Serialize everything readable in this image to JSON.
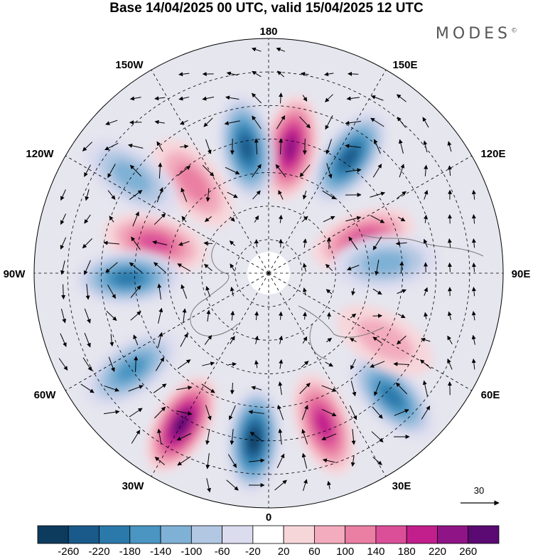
{
  "title": "Base 14/04/2025 00 UTC, valid 15/04/2025 12 UTC",
  "brand": "MODES",
  "brand_mark": "©",
  "meridian_labels": {
    "m180": "180",
    "m150w": "150W",
    "m150e": "150E",
    "m120w": "120W",
    "m120e": "120E",
    "m90w": "90W",
    "m90e": "90E",
    "m60w": "60W",
    "m60e": "60E",
    "m30w": "30W",
    "m30e": "30E",
    "m0": "0"
  },
  "vector_reference": {
    "label": "30"
  },
  "colorbar": {
    "ticks": [
      "-260",
      "-220",
      "-180",
      "-140",
      "-100",
      "-60",
      "-20",
      "20",
      "60",
      "100",
      "140",
      "180",
      "220",
      "260"
    ],
    "colors": [
      "#0d3b5e",
      "#1a5a8a",
      "#2b79ab",
      "#4a95c2",
      "#7fb1d6",
      "#b2c7e2",
      "#dcdcef",
      "#ffffff",
      "#f7d6da",
      "#f2acbd",
      "#ea7fa3",
      "#db4f98",
      "#c21f8c",
      "#8f1486",
      "#5a0a72"
    ]
  },
  "map_data": {
    "projection": "north-polar-stereographic",
    "field": "anomaly with wind vectors",
    "anomalies": [
      {
        "lon": 170,
        "lat": 52,
        "value": 250
      },
      {
        "lon": -170,
        "lat": 52,
        "value": -230
      },
      {
        "lon": 145,
        "lat": 48,
        "value": -220
      },
      {
        "lon": -140,
        "lat": 55,
        "value": 100
      },
      {
        "lon": -125,
        "lat": 40,
        "value": -120
      },
      {
        "lon": -105,
        "lat": 55,
        "value": 140
      },
      {
        "lon": -88,
        "lat": 48,
        "value": -210
      },
      {
        "lon": 110,
        "lat": 60,
        "value": 140
      },
      {
        "lon": 95,
        "lat": 55,
        "value": -100
      },
      {
        "lon": -55,
        "lat": 40,
        "value": -170
      },
      {
        "lon": -30,
        "lat": 38,
        "value": 260
      },
      {
        "lon": -5,
        "lat": 40,
        "value": -260
      },
      {
        "lon": 20,
        "lat": 42,
        "value": 200
      },
      {
        "lon": 45,
        "lat": 38,
        "value": -200
      },
      {
        "lon": 60,
        "lat": 50,
        "value": 60
      }
    ]
  }
}
